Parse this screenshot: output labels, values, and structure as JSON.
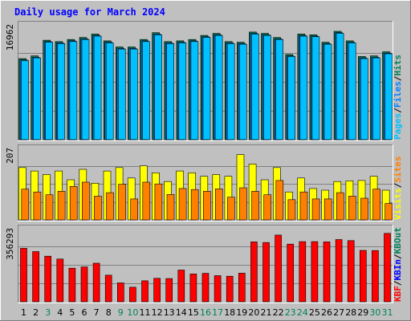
{
  "chart_data": {
    "type": "bar",
    "title": "Daily usage for March 2024",
    "categories": [
      "1",
      "2",
      "3",
      "4",
      "5",
      "6",
      "7",
      "8",
      "9",
      "10",
      "11",
      "12",
      "13",
      "14",
      "15",
      "16",
      "17",
      "18",
      "19",
      "20",
      "21",
      "22",
      "23",
      "24",
      "25",
      "26",
      "27",
      "28",
      "29",
      "30",
      "31"
    ],
    "weekend_days": [
      "3",
      "9",
      "10",
      "16",
      "17",
      "23",
      "24",
      "30",
      "31"
    ],
    "panels": [
      {
        "id": "hits",
        "ymax_label": "16962",
        "ymax": 16962,
        "legend": [
          "Pages",
          "/",
          "Files",
          "/",
          "Hits"
        ],
        "legend_colors": [
          "#00c0ff",
          "#000000",
          "#0080ff",
          "#000000",
          "#00805c"
        ],
        "series": [
          {
            "name": "Hits",
            "color": "#00805c",
            "values": [
              11900,
              12300,
              14600,
              14400,
              14700,
              15000,
              15500,
              14500,
              13600,
              13600,
              14700,
              15700,
              14400,
              14500,
              14700,
              15300,
              15600,
              14400,
              14300,
              15800,
              15600,
              15000,
              12500,
              15500,
              15400,
              14300,
              15900,
              14500,
              12200,
              12300,
              12900
            ]
          },
          {
            "name": "Files",
            "color": "#0080ff",
            "values": [
              11700,
              12100,
              14400,
              14200,
              14500,
              14800,
              15300,
              14300,
              13400,
              13400,
              14500,
              15500,
              14200,
              14300,
              14500,
              15100,
              15400,
              14200,
              14100,
              15600,
              15400,
              14800,
              12300,
              15300,
              15200,
              14100,
              15700,
              14300,
              12000,
              12100,
              12700
            ]
          },
          {
            "name": "Pages",
            "color": "#00c0ff",
            "values": [
              11600,
              12000,
              14300,
              14100,
              14400,
              14700,
              15200,
              14200,
              13300,
              13300,
              14400,
              15400,
              14100,
              14200,
              14400,
              15000,
              15300,
              14100,
              14000,
              15500,
              15300,
              14700,
              12200,
              15200,
              15100,
              14000,
              15600,
              14200,
              11900,
              12000,
              12600
            ]
          }
        ]
      },
      {
        "id": "visits",
        "ymax_label": "207",
        "ymax": 207,
        "legend": [
          "Visits",
          "/",
          "Sites"
        ],
        "legend_colors": [
          "#ffff00",
          "#000000",
          "#ff8000"
        ],
        "series": [
          {
            "name": "Visits",
            "color": "#ffff00",
            "values": [
              150,
              140,
              130,
              140,
              115,
              145,
              105,
              140,
              150,
              120,
              155,
              135,
              110,
              140,
              135,
              125,
              130,
              125,
              187,
              160,
              115,
              150,
              80,
              120,
              90,
              85,
              110,
              112,
              113,
              125,
              85
            ]
          },
          {
            "name": "Sites",
            "color": "#ff8000",
            "values": [
              88,
              80,
              72,
              82,
              96,
              108,
              68,
              78,
              102,
              60,
              108,
              103,
              73,
              90,
              87,
              82,
              89,
              65,
              92,
              82,
              72,
              113,
              58,
              80,
              60,
              60,
              78,
              68,
              62,
              88,
              47
            ]
          }
        ]
      },
      {
        "id": "kbytes",
        "ymax_label": "356293",
        "ymax": 356293,
        "legend": [
          "KB",
          "F",
          "/",
          "KB",
          "In",
          "/",
          "KB",
          "Out"
        ],
        "legend_colors": [
          "#ff0000",
          "#ff0000",
          "#000000",
          "#0000ff",
          "#0000ff",
          "#000000",
          "#00805c",
          "#00805c"
        ],
        "series": [
          {
            "name": "KB F",
            "color": "#ff0000",
            "values": [
              258000,
              242000,
              220000,
              206000,
              162000,
              168000,
              186000,
              128000,
              91000,
              70000,
              101000,
              113000,
              112000,
              153000,
              134000,
              137000,
              126000,
              123000,
              138000,
              289000,
              286000,
              322000,
              278000,
              290000,
              290000,
              289000,
              300000,
              295000,
              248000,
              247000,
              330000
            ]
          }
        ]
      }
    ]
  }
}
